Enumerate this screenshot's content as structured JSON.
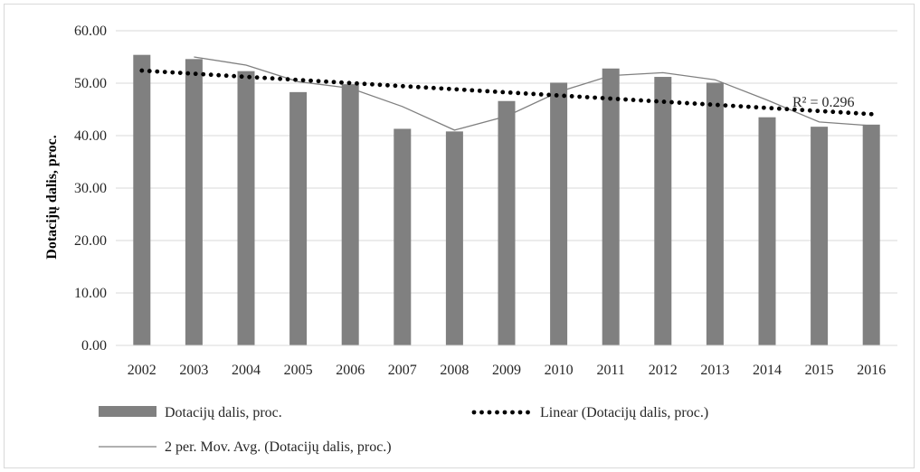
{
  "chart_data": {
    "type": "bar",
    "categories": [
      "2002",
      "2003",
      "2004",
      "2005",
      "2006",
      "2007",
      "2008",
      "2009",
      "2010",
      "2011",
      "2012",
      "2013",
      "2014",
      "2015",
      "2016"
    ],
    "series": [
      {
        "name": "Dotacijų dalis, proc.",
        "type": "bar",
        "color": "#808080",
        "values": [
          55.4,
          54.6,
          52.3,
          48.3,
          49.8,
          41.3,
          40.8,
          46.6,
          50.1,
          52.8,
          51.2,
          50.1,
          43.5,
          41.7,
          42.1
        ]
      },
      {
        "name": "Linear (Dotacijų dalis, proc.)",
        "type": "line",
        "style": "dotted",
        "color": "#000000",
        "values": [
          52.4,
          51.8,
          51.2,
          50.6,
          50.0,
          49.5,
          48.9,
          48.3,
          47.7,
          47.1,
          46.5,
          45.9,
          45.3,
          44.7,
          44.1
        ]
      },
      {
        "name": "2 per. Mov. Avg. (Dotacijų dalis, proc.)",
        "type": "line",
        "style": "solid",
        "color": "#808080",
        "values": [
          null,
          55.0,
          53.45,
          50.3,
          49.05,
          45.55,
          41.05,
          43.7,
          48.35,
          51.45,
          52.0,
          50.65,
          46.8,
          42.6,
          41.9
        ]
      }
    ],
    "ylabel": "Dotacijų dalis, proc.",
    "xlabel": "",
    "ylim": [
      0,
      60
    ],
    "yticks": [
      "0.00",
      "10.00",
      "20.00",
      "30.00",
      "40.00",
      "50.00",
      "60.00"
    ],
    "annotation": "R² = 0.296",
    "grid": true,
    "legend_position": "bottom"
  }
}
